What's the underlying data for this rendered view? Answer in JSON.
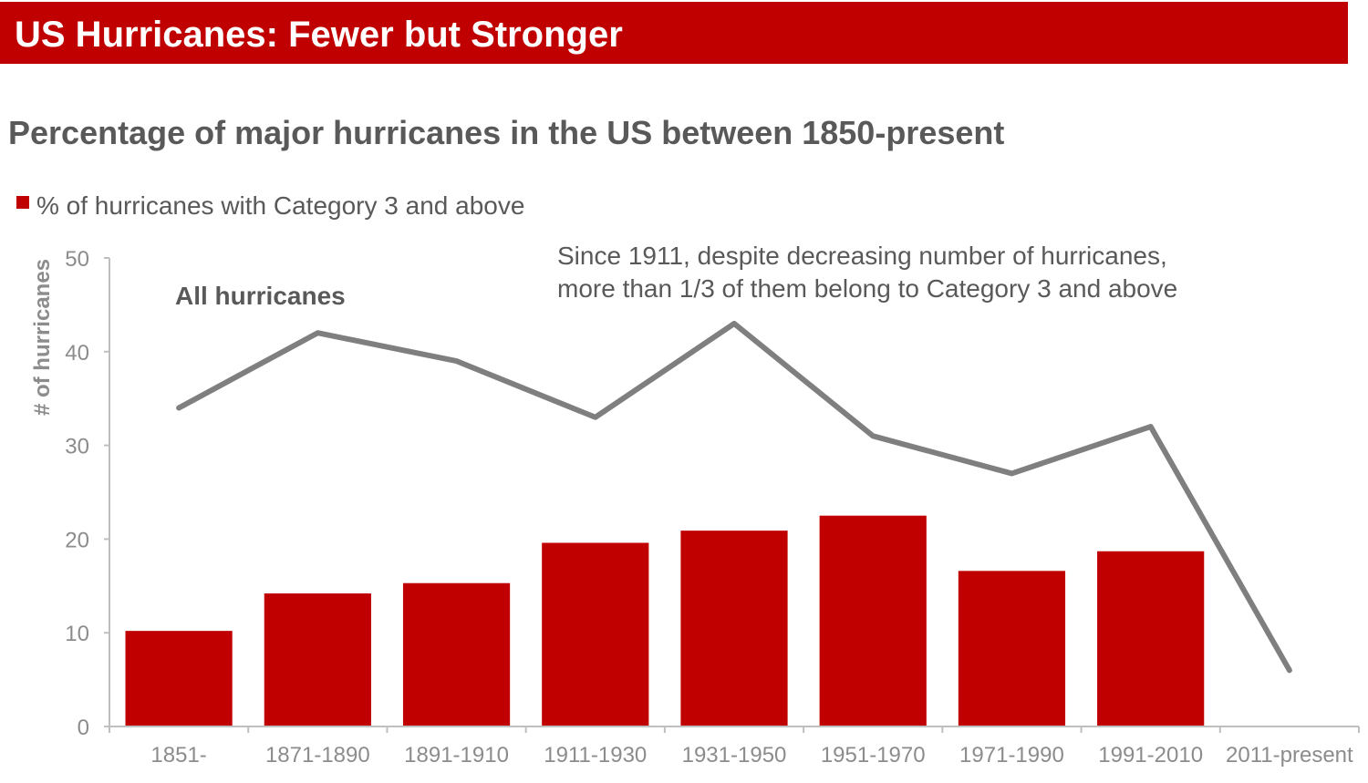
{
  "header": {
    "title": "US Hurricanes: Fewer but Stronger"
  },
  "colors": {
    "accent": "#c00000",
    "line": "#7f7f7f",
    "text": "#595959",
    "axis": "#bfbfbf",
    "tick": "#8c8c8c"
  },
  "chart_data": {
    "type": "bar",
    "title": "Percentage of major hurricanes in the US between 1850-present",
    "xlabel": "",
    "ylabel": "# of hurricanes",
    "ylim": [
      0,
      50
    ],
    "yticks": [
      0,
      10,
      20,
      30,
      40,
      50
    ],
    "grid": false,
    "categories": [
      "1851-",
      "1871-1890",
      "1891-1910",
      "1911-1930",
      "1931-1950",
      "1951-1970",
      "1971-1990",
      "1991-2010",
      "2011-present"
    ],
    "series": [
      {
        "name": "% of hurricanes with Category 3 and above",
        "kind": "bar",
        "color": "#c00000",
        "values": [
          10.2,
          14.2,
          15.3,
          19.6,
          20.9,
          22.5,
          16.6,
          18.7,
          null
        ]
      },
      {
        "name": "All hurricanes",
        "kind": "line",
        "color": "#7f7f7f",
        "values": [
          34,
          42,
          39,
          33,
          43,
          31,
          27,
          32,
          6
        ]
      }
    ],
    "legend": {
      "position": "top-left",
      "entries": [
        "% of hurricanes with Category 3 and above"
      ]
    },
    "annotations": [
      "All hurricanes",
      "Since 1911, despite decreasing number of hurricanes,",
      "more than 1/3 of them belong to Category 3 and above"
    ]
  }
}
